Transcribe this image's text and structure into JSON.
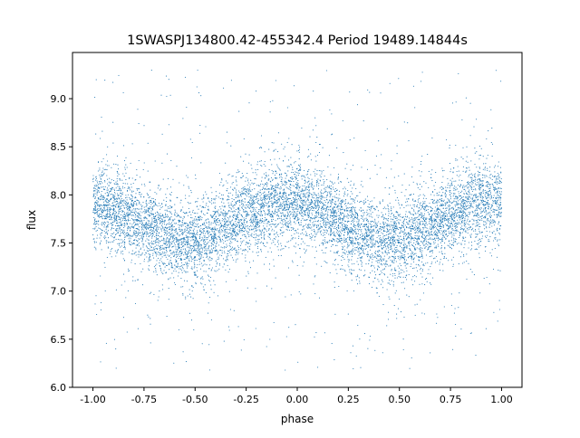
{
  "chart_data": {
    "type": "scatter",
    "title": "1SWASPJ134800.42-455342.4 Period 19489.14844s",
    "xlabel": "phase",
    "ylabel": "flux",
    "xlim": [
      -1.1,
      1.1
    ],
    "ylim": [
      6.0,
      9.48
    ],
    "xticks": [
      "-1.00",
      "-0.75",
      "-0.50",
      "-0.25",
      "0.00",
      "0.25",
      "0.50",
      "0.75",
      "1.00"
    ],
    "yticks": [
      "6.0",
      "6.5",
      "7.0",
      "7.5",
      "8.0",
      "8.5",
      "9.0"
    ],
    "grid": false,
    "point_color": "#1f77b4",
    "binned_mean_flux": {
      "phase": [
        -1.0,
        -0.9,
        -0.8,
        -0.7,
        -0.6,
        -0.5,
        -0.4,
        -0.3,
        -0.2,
        -0.1,
        0.0,
        0.1,
        0.2,
        0.3,
        0.4,
        0.5,
        0.6,
        0.7,
        0.8,
        0.9,
        1.0
      ],
      "flux": [
        7.88,
        7.85,
        7.75,
        7.62,
        7.55,
        7.52,
        7.6,
        7.72,
        7.85,
        7.93,
        7.92,
        7.85,
        7.72,
        7.6,
        7.52,
        7.52,
        7.62,
        7.75,
        7.85,
        7.92,
        7.93
      ]
    },
    "flux_scatter_std": 0.2,
    "outlier_flux_range": [
      6.15,
      9.3
    ]
  }
}
